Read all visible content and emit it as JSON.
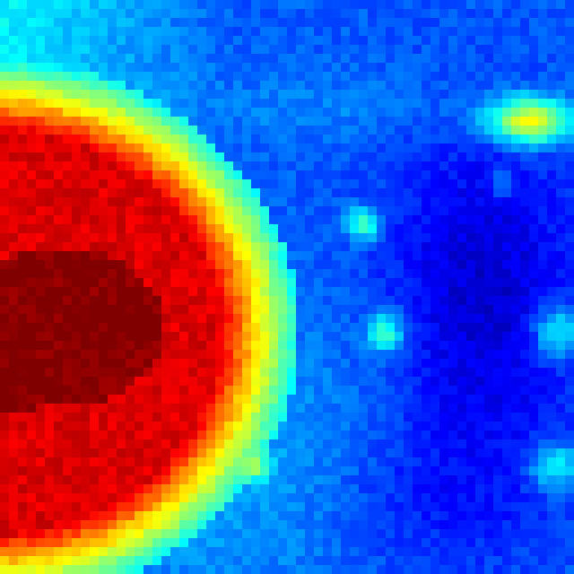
{
  "image": {
    "kind": "false-color intensity map",
    "colormap": "jet",
    "colormap_stops": [
      {
        "value": 0.0,
        "color": "#00008f"
      },
      {
        "value": 0.11,
        "color": "#0000ff"
      },
      {
        "value": 0.36,
        "color": "#00ffff"
      },
      {
        "value": 0.5,
        "color": "#7fff7f"
      },
      {
        "value": 0.64,
        "color": "#ffff00"
      },
      {
        "value": 0.89,
        "color": "#ff0000"
      },
      {
        "value": 1.0,
        "color": "#800000"
      }
    ],
    "text_labels": [],
    "legend_visible": false,
    "axes_visible": false
  }
}
